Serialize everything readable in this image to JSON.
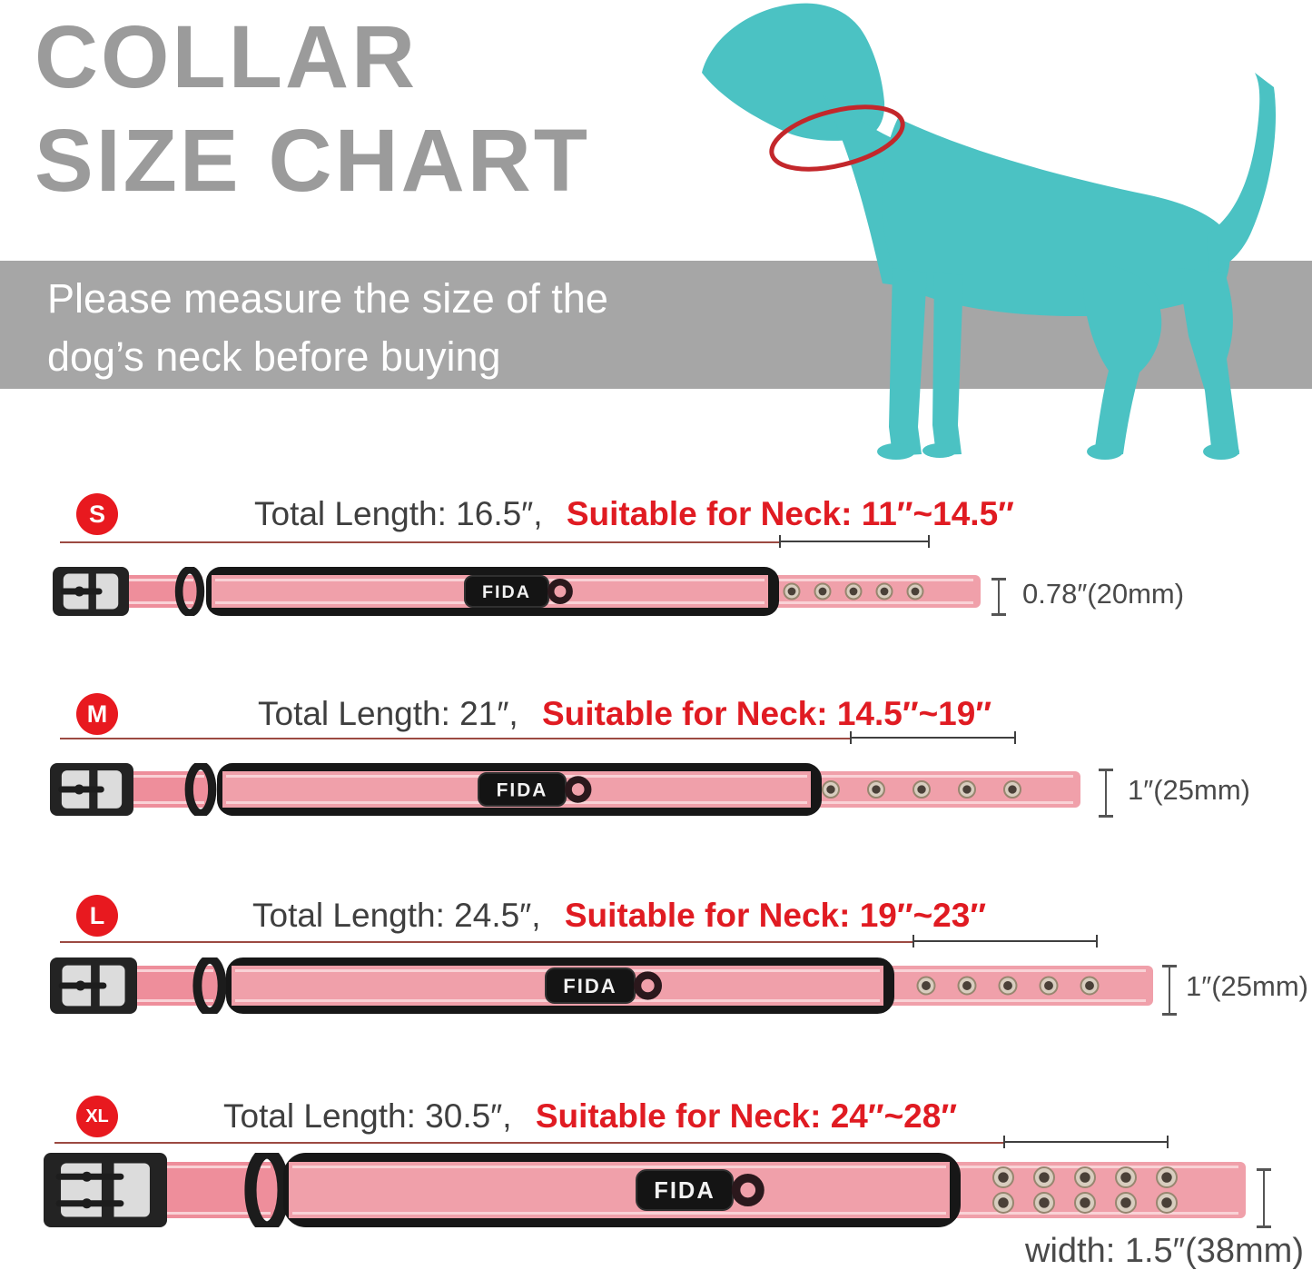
{
  "title": {
    "line1": "COLLAR",
    "line2": "SIZE CHART"
  },
  "banner": {
    "line1": "Please measure the size of the",
    "line2": "dog’s neck before buying"
  },
  "collar": {
    "brand": "FIDA"
  },
  "icons": {
    "dog": "teal-dog-silhouette",
    "collar_marker": "red-neck-ellipse"
  },
  "colors": {
    "title_gray": "#9b9b9b",
    "banner_gray": "#a6a6a6",
    "accent_red": "#e01b22",
    "badge_red": "#e8191f",
    "teal": "#4bc2c3",
    "pink": "#f0a0aa",
    "dark": "#1c1c1c"
  },
  "rows": [
    {
      "size": "S",
      "total_length": "Total Length: 16.5″,",
      "neck_range": "Suitable for Neck: 11″~14.5″",
      "width_label": "0.78″(20mm)"
    },
    {
      "size": "M",
      "total_length": "Total Length: 21″,",
      "neck_range": "Suitable for Neck: 14.5″~19″",
      "width_label": "1″(25mm)"
    },
    {
      "size": "L",
      "total_length": "Total Length: 24.5″,",
      "neck_range": "Suitable for Neck: 19″~23″",
      "width_label": "1″(25mm)"
    },
    {
      "size": "XL",
      "total_length": "Total Length: 30.5″,",
      "neck_range": "Suitable for Neck: 24″~28″",
      "width_label": "width: 1.5″(38mm)"
    }
  ]
}
